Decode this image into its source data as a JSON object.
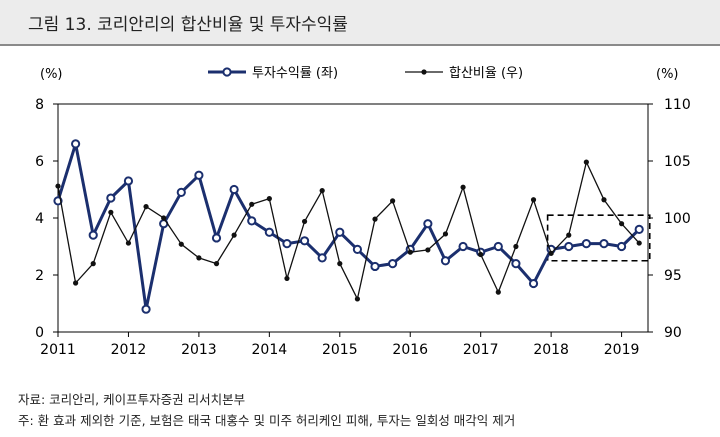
{
  "figure": {
    "title": "그림 13.  코리안리의 합산비율 및 투자수익률",
    "source": "자료: 코리안리, 케이프투자증권 리서치본부",
    "note": "주: 환 효과 제외한 기준, 보험은 태국 대홍수 및 미주 허리케인 피해, 투자는 일회성 매각익 제거"
  },
  "chart_data": {
    "type": "line",
    "left_axis": {
      "unit_label": "(%)",
      "ylim": [
        0,
        8
      ],
      "ticks": [
        "0",
        "2",
        "4",
        "6",
        "8"
      ]
    },
    "right_axis": {
      "unit_label": "(%)",
      "ylim": [
        90,
        110
      ],
      "ticks": [
        "90",
        "95",
        "100",
        "105",
        "110"
      ]
    },
    "x_tick_labels": [
      "2011",
      "2012",
      "2013",
      "2014",
      "2015",
      "2016",
      "2017",
      "2018",
      "2019"
    ],
    "x_range": [
      2011,
      2019.375
    ],
    "series": [
      {
        "name": "투자수익률 (좌)",
        "axis": "left",
        "color": "#1b2f6e",
        "marker": "open-circle",
        "x": [
          2011.0,
          2011.25,
          2011.5,
          2011.75,
          2012.0,
          2012.25,
          2012.5,
          2012.75,
          2013.0,
          2013.25,
          2013.5,
          2013.75,
          2014.0,
          2014.25,
          2014.5,
          2014.75,
          2015.0,
          2015.25,
          2015.5,
          2015.75,
          2016.0,
          2016.25,
          2016.5,
          2016.75,
          2017.0,
          2017.25,
          2017.5,
          2017.75,
          2018.0,
          2018.25,
          2018.5,
          2018.75,
          2019.0,
          2019.25
        ],
        "values": [
          4.6,
          6.6,
          3.4,
          4.7,
          5.3,
          0.8,
          3.8,
          4.9,
          5.5,
          3.3,
          5.0,
          3.9,
          3.5,
          3.1,
          3.2,
          2.6,
          3.5,
          2.9,
          2.3,
          2.4,
          2.9,
          3.8,
          2.5,
          3.0,
          2.8,
          3.0,
          2.4,
          1.7,
          2.9,
          3.0,
          3.1,
          3.1,
          3.0,
          3.6
        ]
      },
      {
        "name": "합산비율 (우)",
        "axis": "right",
        "color": "#111111",
        "marker": "filled-dot",
        "x": [
          2011.0,
          2011.25,
          2011.5,
          2011.75,
          2012.0,
          2012.25,
          2012.5,
          2012.75,
          2013.0,
          2013.25,
          2013.5,
          2013.75,
          2014.0,
          2014.25,
          2014.5,
          2014.75,
          2015.0,
          2015.25,
          2015.5,
          2015.75,
          2016.0,
          2016.25,
          2016.5,
          2016.75,
          2017.0,
          2017.25,
          2017.5,
          2017.75,
          2018.0,
          2018.25,
          2018.5,
          2018.75,
          2019.0,
          2019.25
        ],
        "values": [
          102.8,
          94.3,
          96.0,
          100.5,
          97.8,
          101.0,
          100.0,
          97.7,
          96.5,
          96.0,
          98.5,
          101.2,
          101.7,
          94.7,
          99.7,
          102.4,
          96.0,
          92.9,
          99.9,
          101.5,
          97.0,
          97.2,
          98.6,
          102.7,
          96.8,
          93.5,
          97.5,
          101.6,
          96.9,
          98.5,
          104.9,
          101.6,
          99.5,
          97.8
        ]
      }
    ],
    "highlight_box": {
      "x_from": 2017.95,
      "x_to": 2019.4,
      "left_from": 2.5,
      "left_to": 4.1
    }
  }
}
